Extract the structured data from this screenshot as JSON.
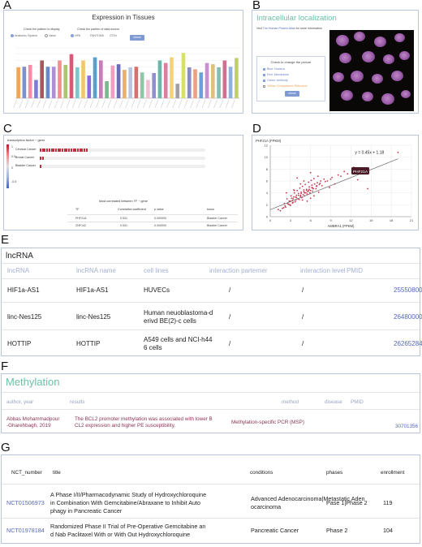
{
  "panel_labels": [
    "A",
    "B",
    "C",
    "D",
    "E",
    "F",
    "G"
  ],
  "panelA": {
    "title": "Expression in Tissues",
    "pattern_label": "Check the pattern to display",
    "pattern_options": [
      "Anatomic System",
      "Value"
    ],
    "source_label": "Check the partten of data source",
    "source_options": [
      "HPA",
      "FANTOM5",
      "GTEx"
    ],
    "check_button": "check",
    "chart_data": {
      "type": "bar",
      "title": "Expression in Tissues",
      "categories": [
        "t1",
        "t2",
        "t3",
        "t4",
        "t5",
        "t6",
        "t7",
        "t8",
        "t9",
        "t10",
        "t11",
        "t12",
        "t13",
        "t14",
        "t15",
        "t16",
        "t17",
        "t18",
        "t19",
        "t20",
        "t21",
        "t22",
        "t23",
        "t24",
        "t25",
        "t26",
        "t27",
        "t28",
        "t29",
        "t30",
        "t31",
        "t32",
        "t33",
        "t34",
        "t35",
        "t36",
        "t37",
        "t38"
      ],
      "values": [
        49,
        50,
        53,
        29,
        60,
        50,
        50,
        60,
        53,
        70,
        49,
        60,
        36,
        65,
        60,
        27,
        52,
        54,
        45,
        49,
        50,
        41,
        29,
        40,
        60,
        56,
        65,
        23,
        72,
        49,
        46,
        41,
        56,
        54,
        49,
        60,
        50,
        64
      ],
      "colors": [
        "#f2a654",
        "#7f8fc7",
        "#f28fa8",
        "#7d7dd8",
        "#a45a5a",
        "#6c88c8",
        "#b08ed8",
        "#f08e8e",
        "#a9c86c",
        "#d95a78",
        "#7ac8c8",
        "#f2c66c",
        "#8c6cd8",
        "#5aa0c8",
        "#c87db8",
        "#7db88c",
        "#f29ec0",
        "#6c6cb8",
        "#e8b06c",
        "#b8c8e0",
        "#d87070",
        "#8cc8a8",
        "#f0c0d0",
        "#9090d0",
        "#6cb8a8",
        "#e07ca0",
        "#f2d66c",
        "#a0a0a0",
        "#d8e06c",
        "#8c8cc8",
        "#f0a080",
        "#70a0d0",
        "#c890d0",
        "#e0c080",
        "#80c0b0",
        "#d07090",
        "#90b0e0",
        "#c0d070"
      ],
      "ylim": [
        0,
        80
      ]
    }
  },
  "panelB": {
    "title": "Intracellular localization",
    "sub_pre": "Visit",
    "sub_link": "The Human Protein Atlas",
    "sub_post": "for more information",
    "box_title": "Check to change the picture",
    "options": [
      {
        "label": "Blue: Nucleus",
        "color": "#6a7cc8"
      },
      {
        "label": "Red: Microtubule",
        "color": "#6a7cc8"
      },
      {
        "label": "Green: Antibody",
        "color": "#6a7cc8"
      },
      {
        "label": "Yellow: Endoplasmic Reticulum",
        "color": "#e9a258"
      }
    ],
    "check_button": "check"
  },
  "panelC": {
    "header": "transcription factor ~ gene",
    "scale_ticks": [
      "1",
      "0.5",
      "0",
      "-0.5"
    ],
    "rows": [
      {
        "label": "Cervical Cancer",
        "segments": 22
      },
      {
        "label": "Breast Cancer",
        "segments": 2
      },
      {
        "label": "Bladder Cancer",
        "segments": 1
      }
    ],
    "most_correlated_title": "Most correlated between TF ~ gene",
    "columns": [
      "TF",
      "Correlation coefficient",
      "p value",
      "tumor"
    ],
    "table_rows": [
      [
        "PHF21A",
        "0.531",
        "0.000000",
        "Bladder Cancer"
      ],
      [
        "ZNF142",
        "0.531",
        "0.000000",
        "Bladder Cancer"
      ]
    ]
  },
  "panelD": {
    "chart_data": {
      "type": "scatter",
      "xlabel": "AMBRA1 (FPKM)",
      "ylabel": "PHF21A (FPKM)",
      "xlim": [
        0,
        21
      ],
      "ylim": [
        0,
        12
      ],
      "xticks": [
        "0",
        "3",
        "6",
        "9",
        "12",
        "15",
        "18",
        "21"
      ],
      "yticks": [
        "0",
        "2",
        "4",
        "6",
        "8",
        "10",
        "12"
      ],
      "fit_equation": "y = 0.45x + 1.18",
      "fit": {
        "slope": 0.45,
        "intercept": 1.18,
        "x_range": [
          0,
          19
        ]
      },
      "annotation": "PHF21A",
      "annotation_point": [
        14,
        7.5
      ],
      "series": [
        {
          "x": [
            2.1,
            2.8,
            3.2,
            3.5,
            3.9,
            4.2,
            4.6,
            5.0,
            5.4,
            5.8,
            6.2,
            6.6,
            7.0,
            7.5,
            8.0,
            3.0,
            3.4,
            3.8,
            4.1,
            4.5,
            4.9,
            5.3,
            5.6,
            6.0,
            6.4,
            6.9,
            7.3,
            2.5,
            3.1,
            3.6,
            4.0,
            4.4,
            4.8,
            5.2,
            5.7,
            6.1,
            6.5,
            7.1,
            2.3,
            2.9,
            3.3,
            3.7,
            4.3,
            4.7,
            5.1,
            5.5,
            5.9,
            6.3,
            6.8,
            7.7,
            8.5,
            9.2,
            10.1,
            11.0,
            12.4,
            13.0,
            8.8,
            9.6,
            1.8,
            2.2,
            2.6,
            3.0,
            3.4,
            3.8,
            4.2,
            4.6,
            5.0,
            5.4,
            5.8,
            6.2,
            1.5,
            2.0,
            2.7,
            3.3,
            3.9,
            4.5,
            5.1,
            5.7,
            6.3,
            6.9,
            7.4,
            8.2,
            9.0,
            10.5,
            1.2,
            11.5,
            14.5,
            19.0,
            4.0,
            5.0,
            6.0,
            3.5,
            4.5,
            5.5,
            6.5,
            2.4,
            3.6,
            4.8,
            6.0,
            7.2
          ],
          "y": [
            2.2,
            2.6,
            3.1,
            3.3,
            3.6,
            3.9,
            4.1,
            4.5,
            4.6,
            5.0,
            5.3,
            5.5,
            5.7,
            6.0,
            6.3,
            1.9,
            2.4,
            2.8,
            3.0,
            3.4,
            3.7,
            4.0,
            4.2,
            4.4,
            4.7,
            5.1,
            5.4,
            3.0,
            3.5,
            4.0,
            4.4,
            4.8,
            5.1,
            5.4,
            5.8,
            6.1,
            6.4,
            6.8,
            1.6,
            2.0,
            2.3,
            2.5,
            2.9,
            3.2,
            3.5,
            3.8,
            4.0,
            4.3,
            4.7,
            5.2,
            6.0,
            6.6,
            7.0,
            7.6,
            8.3,
            6.2,
            4.9,
            5.5,
            1.4,
            1.8,
            2.2,
            2.6,
            3.0,
            3.3,
            3.6,
            3.9,
            4.2,
            4.4,
            4.6,
            4.9,
            1.0,
            1.5,
            2.1,
            2.7,
            3.2,
            3.6,
            4.0,
            4.4,
            4.8,
            5.2,
            5.6,
            5.9,
            6.3,
            6.8,
            1.2,
            7.2,
            4.7,
            10.8,
            6.5,
            6.0,
            7.4,
            4.5,
            5.5,
            2.6,
            3.5,
            4.0,
            4.4,
            2.8,
            3.1,
            4.1
          ]
        }
      ]
    }
  },
  "panelE": {
    "title": "lncRNA",
    "columns": [
      "lncRNA",
      "lncRNA name",
      "cell lines",
      "interaction parterner",
      "interaction level",
      "PMID"
    ],
    "rows": [
      {
        "lncrna": "HIF1a-AS1",
        "name": "HIF1a-AS1",
        "cells": [
          "HUVECs"
        ],
        "partner": "/",
        "level": "/",
        "pmid": "25550800"
      },
      {
        "lncrna": "linc-Nes125",
        "name": "linc-Nes125",
        "cells": [
          "Human neuoblastoma-d",
          "erivd BE(2)-c cells"
        ],
        "partner": "/",
        "level": "/",
        "pmid": "26480000"
      },
      {
        "lncrna": "HOTTIP",
        "name": "HOTTIP",
        "cells": [
          "A549 cells and NCI-h44",
          "6 cells"
        ],
        "partner": "/",
        "level": "/",
        "pmid": "26265284"
      }
    ]
  },
  "panelF": {
    "title": "Methylation",
    "columns": [
      "author, year",
      "results",
      "method",
      "disease",
      "PMID"
    ],
    "row": {
      "author": [
        "Abbas Mohammadpour",
        "-Gharehbagh, 2019"
      ],
      "results": [
        "The BCL2 promoter methylation was associated with lower B",
        "CL2 expression and higher PE susceptibility."
      ],
      "method": "Methylation-specific PCR (MSP)",
      "disease": "",
      "pmid": "30701356"
    }
  },
  "panelG": {
    "columns": [
      "NCT_number",
      "title",
      "conditions",
      "phases",
      "enrollment"
    ],
    "rows": [
      {
        "nct": "NCT01506973",
        "title": [
          "A Phase I/II/Pharmacodynamic Study of Hydroxychloroquine",
          "in Combination With Gemcitabine/Abraxane to Inhibit Auto",
          "phagy in Pancreatic Cancer"
        ],
        "conditions": [
          "Advanced Adenocarcinoma|Metastatic Aden",
          "ocarcinoma"
        ],
        "phases": "Pase 1|Phase 2",
        "enrollment": "119"
      },
      {
        "nct": "NCT01978184",
        "title": [
          "Randomized Phase II Trial of Pre-Operative Gemcitabine an",
          "d Nab Paclitaxel With or With Out Hydroxychloroquine"
        ],
        "conditions": [
          "Pancreatic Cancer"
        ],
        "phases": "Phase 2",
        "enrollment": "104"
      }
    ]
  }
}
